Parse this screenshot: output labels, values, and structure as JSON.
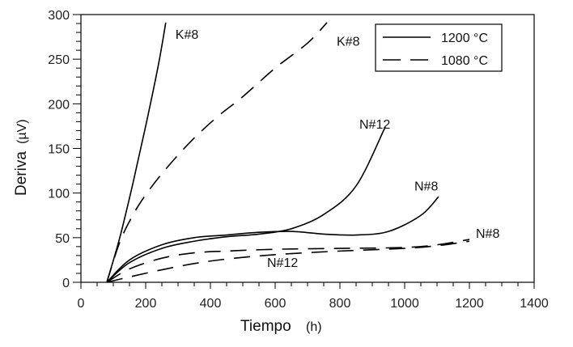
{
  "chart_data": {
    "type": "line",
    "title": "",
    "xlabel": "Tiempo",
    "xlabel_unit": "(h)",
    "ylabel": "Deriva",
    "ylabel_unit": "(µV)",
    "xlim": [
      0,
      1400
    ],
    "ylim": [
      0,
      300
    ],
    "xticks": [
      0,
      200,
      400,
      600,
      800,
      1000,
      1200,
      1400
    ],
    "yticks": [
      0,
      50,
      100,
      150,
      200,
      250,
      300
    ],
    "grid": false,
    "legend": {
      "placement": "top-right",
      "entries": [
        {
          "label": "1200 °C",
          "style": "solid"
        },
        {
          "label": "1080 °C",
          "style": "dashed"
        }
      ]
    },
    "series": [
      {
        "name": "K#8",
        "temperature": "1200 °C",
        "style": "solid",
        "x": [
          80,
          120,
          160,
          200,
          240,
          262
        ],
        "y": [
          0,
          50,
          110,
          175,
          245,
          291
        ]
      },
      {
        "name": "K#8",
        "temperature": "1080 °C",
        "style": "dashed",
        "x": [
          80,
          120,
          160,
          200,
          260,
          340,
          420,
          500,
          600,
          700,
          760
        ],
        "y": [
          0,
          45,
          75,
          98,
          126,
          158,
          185,
          208,
          240,
          268,
          291
        ]
      },
      {
        "name": "N#12",
        "temperature": "1200 °C",
        "style": "solid",
        "x": [
          80,
          150,
          250,
          350,
          450,
          550,
          650,
          750,
          850,
          940
        ],
        "y": [
          0,
          22,
          38,
          46,
          51,
          54,
          60,
          76,
          108,
          174
        ]
      },
      {
        "name": "N#8",
        "temperature": "1200 °C",
        "style": "solid",
        "x": [
          80,
          150,
          250,
          350,
          450,
          550,
          650,
          750,
          850,
          950,
          1050,
          1105
        ],
        "y": [
          0,
          25,
          42,
          50,
          53,
          56,
          57,
          54,
          53,
          57,
          75,
          96
        ]
      },
      {
        "name": "N#8",
        "temperature": "1080 °C",
        "style": "dashed",
        "x": [
          80,
          150,
          250,
          350,
          450,
          600,
          800,
          1000,
          1100,
          1200
        ],
        "y": [
          0,
          15,
          27,
          33,
          35,
          37,
          38,
          39,
          42,
          48
        ]
      },
      {
        "name": "N#12",
        "temperature": "1080 °C",
        "style": "dashed",
        "x": [
          80,
          150,
          250,
          350,
          450,
          600,
          800,
          1000,
          1100,
          1200
        ],
        "y": [
          0,
          6,
          14,
          21,
          26,
          31,
          35,
          38,
          41,
          46
        ]
      }
    ],
    "annotations": [
      {
        "text": "K#8",
        "x": 292,
        "y": 273
      },
      {
        "text": "K#8",
        "x": 790,
        "y": 265
      },
      {
        "text": "N#12",
        "x": 860,
        "y": 172
      },
      {
        "text": "N#8",
        "x": 1030,
        "y": 103
      },
      {
        "text": "N#8",
        "x": 1220,
        "y": 50
      },
      {
        "text": "N#12",
        "x": 575,
        "y": 17
      }
    ]
  }
}
